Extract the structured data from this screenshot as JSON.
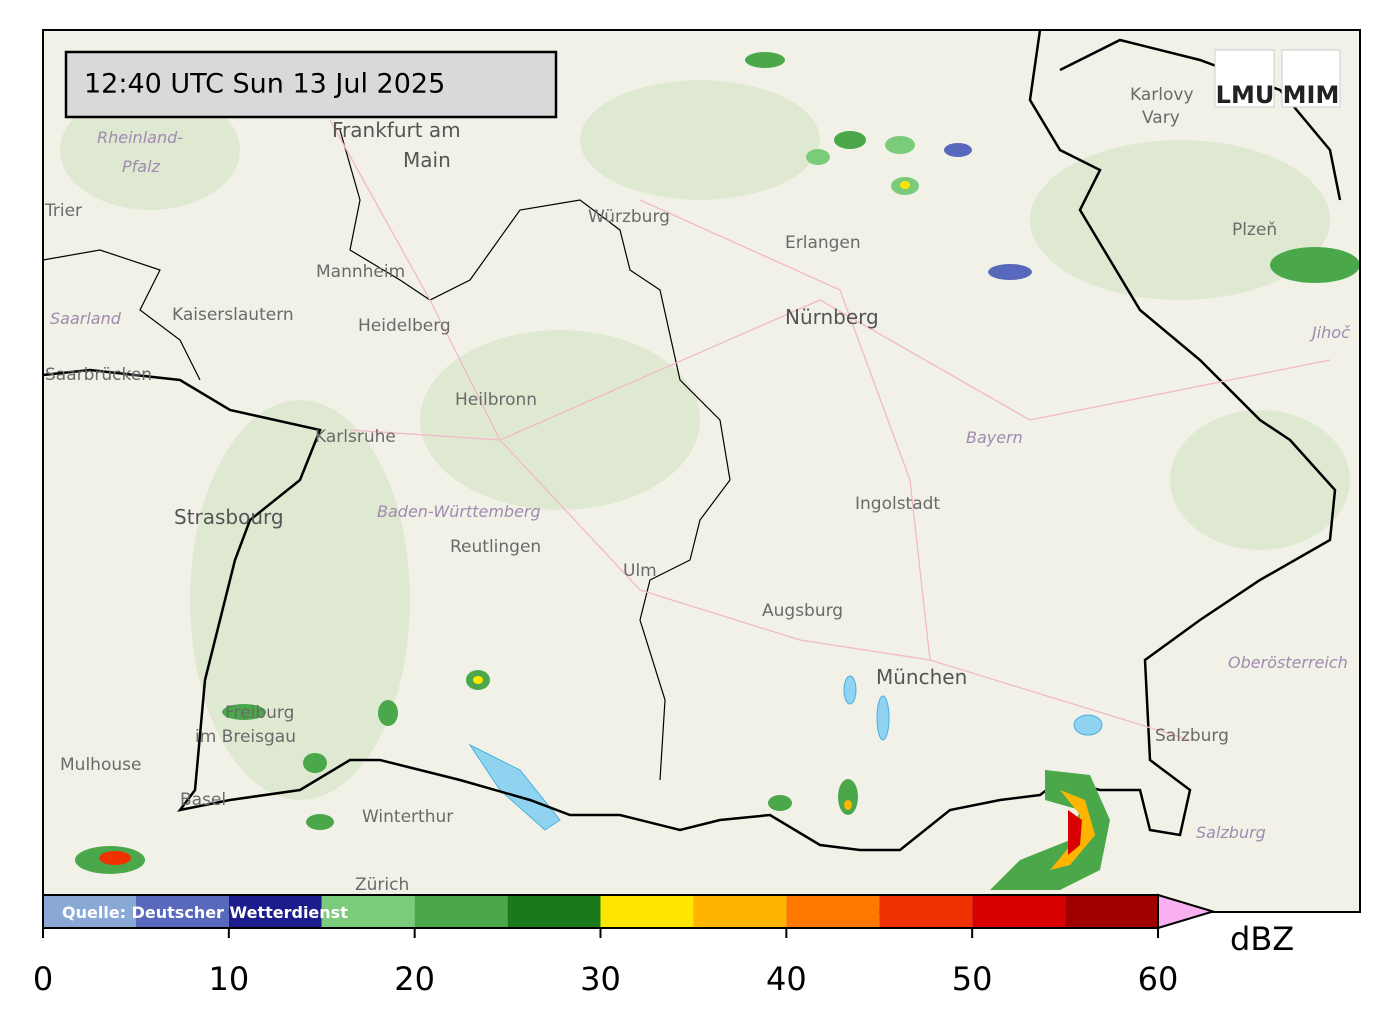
{
  "timestamp": "12:40 UTC  Sun 13 Jul 2025",
  "logos": [
    "LMU",
    "MIM"
  ],
  "source": "Quelle: Deutscher Wetterdienst",
  "places": [
    "Frankfurt am",
    "Main",
    "Karlovy",
    "Vary",
    "Rheinland-",
    "Pfalz",
    "Trier",
    "Würzburg",
    "Erlangen",
    "Nürnberg",
    "Mannheim",
    "Kaiserslautern",
    "Heidelberg",
    "Saarland",
    "Saarbrücken",
    "Heilbronn",
    "Karlsruhe",
    "Bayern",
    "Ingolstadt",
    "Strasbourg",
    "Baden-Württemberg",
    "Reutlingen",
    "Ulm",
    "Augsburg",
    "München",
    "Oberösterreich",
    "Freiburg",
    "im Breisgau",
    "Mulhouse",
    "Basel",
    "Winterthur",
    "Zürich",
    "Salzburg",
    "Salzburg",
    "Plzeň",
    "Jihoč"
  ],
  "colorbar": {
    "unit": "dBZ",
    "bounds": [
      0,
      5,
      10,
      15,
      20,
      25,
      30,
      35,
      40,
      45,
      50,
      55,
      60
    ],
    "colors": [
      "#8aa8d6",
      "#5868bc",
      "#1c1c8c",
      "#7acb7a",
      "#4aa84a",
      "#1a7a1a",
      "#ffe600",
      "#ffb400",
      "#ff7800",
      "#f03200",
      "#d80000",
      "#a00000"
    ],
    "extend_color": "#f8b0f0",
    "xlim": [
      0,
      60
    ],
    "xticks": [
      0,
      10,
      20,
      30,
      40,
      50,
      60
    ]
  }
}
